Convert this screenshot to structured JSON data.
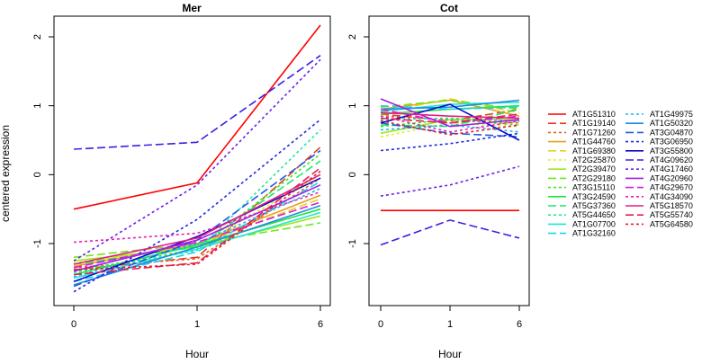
{
  "figure": {
    "ylabel": "centered expression",
    "xlabel": "Hour"
  },
  "chart_data": [
    {
      "type": "line",
      "title": "Mer",
      "x": [
        "0",
        "1",
        "6"
      ],
      "xlabel": "Hour",
      "ylabel": "centered expression",
      "ylim": [
        -1.9,
        2.3
      ],
      "yticks": [
        -1,
        0,
        1,
        2
      ],
      "series": [
        {
          "name": "AT1G51310",
          "color": "#ff0000",
          "dash": "solid",
          "values": [
            -0.5,
            -0.12,
            2.17
          ]
        },
        {
          "name": "AT1G19140",
          "color": "#e63d1e",
          "dash": "longdash",
          "values": [
            -1.38,
            -1.2,
            0.4
          ]
        },
        {
          "name": "AT1G71260",
          "color": "#e65c1e",
          "dash": "dash",
          "values": [
            -1.35,
            -1.22,
            -0.05
          ]
        },
        {
          "name": "AT1G44760",
          "color": "#e6a01e",
          "dash": "solid",
          "values": [
            -1.33,
            -1.0,
            -0.3
          ]
        },
        {
          "name": "AT1G69380",
          "color": "#e6d21e",
          "dash": "longdash",
          "values": [
            -1.3,
            -1.02,
            -0.35
          ]
        },
        {
          "name": "AT2G25870",
          "color": "#e1ef1e",
          "dash": "dash",
          "values": [
            -1.28,
            -1.05,
            0.0
          ]
        },
        {
          "name": "AT2G39470",
          "color": "#a0e61e",
          "dash": "solid",
          "values": [
            -1.25,
            -1.05,
            -0.6
          ]
        },
        {
          "name": "AT2G29180",
          "color": "#6ee61e",
          "dash": "longdash",
          "values": [
            -1.2,
            -1.0,
            -0.7
          ]
        },
        {
          "name": "AT3G15110",
          "color": "#3ce61e",
          "dash": "dash",
          "values": [
            -1.4,
            -1.08,
            0.3
          ]
        },
        {
          "name": "AT3G24590",
          "color": "#1ee63c",
          "dash": "solid",
          "values": [
            -1.45,
            -1.02,
            -0.5
          ]
        },
        {
          "name": "AT5G37360",
          "color": "#1ee66e",
          "dash": "longdash",
          "values": [
            -1.3,
            -1.05,
            0.2
          ]
        },
        {
          "name": "AT5G44650",
          "color": "#1ee6a0",
          "dash": "dash",
          "values": [
            -1.42,
            -1.1,
            0.65
          ]
        },
        {
          "name": "AT1G07700",
          "color": "#1ee6d2",
          "dash": "solid",
          "values": [
            -1.5,
            -1.08,
            -0.55
          ]
        },
        {
          "name": "AT1G32160",
          "color": "#1ed2e6",
          "dash": "longdash",
          "values": [
            -1.55,
            -1.12,
            -0.1
          ]
        },
        {
          "name": "AT1G49975",
          "color": "#1eb4e6",
          "dash": "dash",
          "values": [
            -1.48,
            -1.0,
            -0.2
          ]
        },
        {
          "name": "AT1G50320",
          "color": "#1e8ce6",
          "dash": "solid",
          "values": [
            -1.6,
            -1.05,
            -0.45
          ]
        },
        {
          "name": "AT3G04870",
          "color": "#1e5ae6",
          "dash": "longdash",
          "values": [
            -1.62,
            -0.95,
            0.35
          ]
        },
        {
          "name": "AT3G06950",
          "color": "#1e28e6",
          "dash": "dash",
          "values": [
            -1.7,
            -0.65,
            0.8
          ]
        },
        {
          "name": "AT3G55800",
          "color": "#0a0ad2",
          "dash": "solid",
          "values": [
            -1.55,
            -0.9,
            -0.05
          ]
        },
        {
          "name": "AT4G09620",
          "color": "#3c1ee6",
          "dash": "longdash",
          "values": [
            0.37,
            0.47,
            1.73
          ]
        },
        {
          "name": "AT4G17460",
          "color": "#6e1ee6",
          "dash": "dash",
          "values": [
            -1.25,
            -0.15,
            1.67
          ]
        },
        {
          "name": "AT4G20960",
          "color": "#a01ee6",
          "dash": "solid",
          "values": [
            -1.4,
            -0.95,
            -0.15
          ]
        },
        {
          "name": "AT4G29670",
          "color": "#d21ee6",
          "dash": "longdash",
          "values": [
            -1.35,
            -0.98,
            -0.4
          ]
        },
        {
          "name": "AT4G34090",
          "color": "#e61eb4",
          "dash": "dash",
          "values": [
            -0.98,
            -0.85,
            -0.25
          ]
        },
        {
          "name": "AT5G18570",
          "color": "#e61e82",
          "dash": "solid",
          "values": [
            -1.3,
            -0.92,
            0.0
          ]
        },
        {
          "name": "AT5G55740",
          "color": "#e61e50",
          "dash": "longdash",
          "values": [
            -1.45,
            -1.28,
            0.1
          ]
        },
        {
          "name": "AT5G64580",
          "color": "#e61e28",
          "dash": "dash",
          "values": [
            -1.38,
            -1.3,
            0.05
          ]
        }
      ]
    },
    {
      "type": "line",
      "title": "Cot",
      "x": [
        "0",
        "1",
        "6"
      ],
      "xlabel": "Hour",
      "ylim": [
        -1.9,
        2.3
      ],
      "yticks": [
        -1,
        0,
        1,
        2
      ],
      "series": [
        {
          "name": "AT1G51310",
          "values": [
            -0.52,
            -0.52,
            -0.52
          ]
        },
        {
          "name": "AT1G19140",
          "values": [
            0.88,
            0.78,
            0.95
          ]
        },
        {
          "name": "AT1G71260",
          "values": [
            0.85,
            0.8,
            0.75
          ]
        },
        {
          "name": "AT1G44760",
          "values": [
            0.95,
            1.08,
            0.85
          ]
        },
        {
          "name": "AT1G69380",
          "values": [
            0.9,
            1.1,
            0.9
          ]
        },
        {
          "name": "AT2G25870",
          "values": [
            0.55,
            0.75,
            0.7
          ]
        },
        {
          "name": "AT2G39470",
          "values": [
            0.6,
            0.8,
            0.8
          ]
        },
        {
          "name": "AT2G29180",
          "values": [
            0.98,
            1.08,
            0.95
          ]
        },
        {
          "name": "AT3G15110",
          "values": [
            0.7,
            0.8,
            0.72
          ]
        },
        {
          "name": "AT3G24590",
          "values": [
            0.88,
            0.95,
            1.0
          ]
        },
        {
          "name": "AT5G37360",
          "values": [
            0.72,
            0.7,
            0.95
          ]
        },
        {
          "name": "AT5G44650",
          "values": [
            0.8,
            0.82,
            0.78
          ]
        },
        {
          "name": "AT1G07700",
          "values": [
            0.92,
            1.02,
            1.05
          ]
        },
        {
          "name": "AT1G32160",
          "values": [
            1.0,
            0.95,
            0.98
          ]
        },
        {
          "name": "AT1G49975",
          "values": [
            0.65,
            0.72,
            0.62
          ]
        },
        {
          "name": "AT1G50320",
          "values": [
            0.95,
            0.98,
            1.08
          ]
        },
        {
          "name": "AT3G04870",
          "values": [
            0.75,
            0.6,
            0.55
          ]
        },
        {
          "name": "AT3G06950",
          "values": [
            0.35,
            0.45,
            0.6
          ]
        },
        {
          "name": "AT3G55800",
          "values": [
            0.75,
            1.02,
            0.5
          ]
        },
        {
          "name": "AT4G09620",
          "values": [
            -1.02,
            -0.66,
            -0.92
          ]
        },
        {
          "name": "AT4G17460",
          "values": [
            -0.31,
            -0.15,
            0.12
          ]
        },
        {
          "name": "AT4G20960",
          "values": [
            1.1,
            0.7,
            0.8
          ]
        },
        {
          "name": "AT4G29670",
          "values": [
            0.95,
            0.75,
            0.85
          ]
        },
        {
          "name": "AT4G34090",
          "values": [
            0.85,
            0.62,
            0.78
          ]
        },
        {
          "name": "AT5G18570",
          "values": [
            0.9,
            0.85,
            0.82
          ]
        },
        {
          "name": "AT5G55740",
          "values": [
            0.82,
            0.75,
            0.88
          ]
        },
        {
          "name": "AT5G64580",
          "values": [
            0.78,
            0.58,
            0.72
          ]
        }
      ]
    }
  ],
  "legend": {
    "placement": "right",
    "columns": 2
  }
}
